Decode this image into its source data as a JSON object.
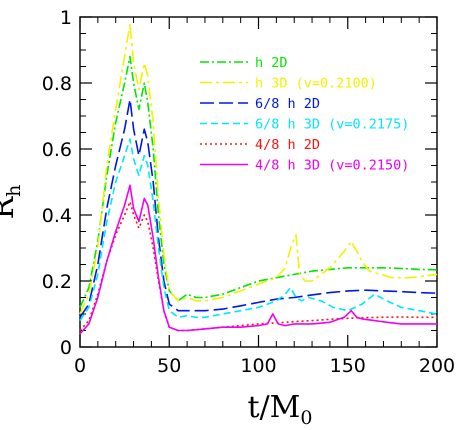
{
  "chart_data": {
    "type": "line",
    "title": "",
    "xlabel": {
      "main": "t/M",
      "sub": "0"
    },
    "ylabel": {
      "main": "R",
      "sub": "h"
    },
    "xlim": [
      0,
      200
    ],
    "ylim": [
      0,
      1
    ],
    "x_ticks": [
      0,
      50,
      100,
      150,
      200
    ],
    "x_tick_labels": [
      "0",
      "50",
      "100",
      "150",
      "200"
    ],
    "y_ticks": [
      0,
      0.2,
      0.4,
      0.6,
      0.8,
      1
    ],
    "y_tick_labels": [
      "0",
      "0.2",
      "0.4",
      "0.6",
      "0.8",
      "1"
    ],
    "grid": false,
    "legend_placement": "top-right",
    "series": [
      {
        "name": "h 2D",
        "color": "#00e600",
        "dash": "dashdot",
        "x": [
          0,
          5,
          10,
          15,
          20,
          25,
          28,
          30,
          33,
          36,
          38,
          41,
          44,
          47,
          50,
          55,
          60,
          65,
          70,
          80,
          90,
          100,
          110,
          120,
          130,
          140,
          150,
          160,
          170,
          180,
          190,
          200
        ],
        "y": [
          0.12,
          0.18,
          0.32,
          0.52,
          0.68,
          0.8,
          0.88,
          0.8,
          0.72,
          0.8,
          0.74,
          0.6,
          0.4,
          0.25,
          0.17,
          0.14,
          0.16,
          0.15,
          0.15,
          0.16,
          0.18,
          0.2,
          0.21,
          0.22,
          0.23,
          0.235,
          0.24,
          0.24,
          0.24,
          0.238,
          0.235,
          0.234
        ]
      },
      {
        "name": "h 3D (v=0.2100)",
        "color": "#f2f200",
        "dash": "longdashdot",
        "x": [
          0,
          5,
          10,
          15,
          20,
          25,
          28,
          30,
          33,
          36,
          38,
          41,
          44,
          47,
          50,
          55,
          60,
          65,
          70,
          80,
          90,
          100,
          110,
          115,
          118,
          121,
          123,
          126,
          130,
          140,
          148,
          152,
          155,
          158,
          162,
          168,
          175,
          185,
          200
        ],
        "y": [
          0.1,
          0.16,
          0.3,
          0.55,
          0.72,
          0.88,
          0.98,
          0.86,
          0.78,
          0.86,
          0.82,
          0.68,
          0.45,
          0.28,
          0.17,
          0.14,
          0.15,
          0.14,
          0.14,
          0.15,
          0.17,
          0.19,
          0.21,
          0.24,
          0.3,
          0.34,
          0.22,
          0.2,
          0.2,
          0.24,
          0.29,
          0.32,
          0.29,
          0.26,
          0.23,
          0.22,
          0.21,
          0.21,
          0.22
        ]
      },
      {
        "name": "6/8 h 2D",
        "color": "#0018e0",
        "dash": "longdash",
        "x": [
          0,
          5,
          10,
          15,
          20,
          25,
          28,
          30,
          33,
          36,
          38,
          41,
          44,
          47,
          50,
          55,
          60,
          65,
          70,
          80,
          90,
          100,
          110,
          120,
          130,
          140,
          150,
          160,
          170,
          180,
          190,
          200
        ],
        "y": [
          0.09,
          0.13,
          0.25,
          0.42,
          0.55,
          0.66,
          0.75,
          0.66,
          0.58,
          0.66,
          0.62,
          0.5,
          0.33,
          0.2,
          0.13,
          0.11,
          0.11,
          0.11,
          0.11,
          0.115,
          0.125,
          0.135,
          0.145,
          0.15,
          0.158,
          0.165,
          0.17,
          0.172,
          0.17,
          0.168,
          0.165,
          0.163
        ]
      },
      {
        "name": "6/8 h 3D (v=0.2175)",
        "color": "#00e6ff",
        "dash": "dash",
        "x": [
          0,
          5,
          10,
          15,
          20,
          25,
          28,
          30,
          33,
          36,
          38,
          41,
          44,
          47,
          50,
          55,
          60,
          65,
          70,
          80,
          90,
          100,
          110,
          115,
          118,
          121,
          124,
          128,
          135,
          142,
          150,
          158,
          165,
          172,
          180,
          190,
          200
        ],
        "y": [
          0.08,
          0.12,
          0.22,
          0.38,
          0.5,
          0.58,
          0.63,
          0.57,
          0.52,
          0.58,
          0.55,
          0.44,
          0.3,
          0.18,
          0.11,
          0.09,
          0.095,
          0.09,
          0.09,
          0.1,
          0.11,
          0.12,
          0.14,
          0.16,
          0.18,
          0.15,
          0.14,
          0.15,
          0.14,
          0.12,
          0.11,
          0.13,
          0.16,
          0.14,
          0.12,
          0.11,
          0.1
        ]
      },
      {
        "name": "4/8 h 2D",
        "color": "#ff1010",
        "dash": "dot",
        "x": [
          0,
          5,
          10,
          15,
          20,
          25,
          28,
          30,
          33,
          36,
          38,
          41,
          44,
          47,
          50,
          55,
          60,
          70,
          80,
          90,
          100,
          110,
          120,
          130,
          140,
          150,
          160,
          170,
          180,
          190,
          200
        ],
        "y": [
          0.05,
          0.08,
          0.16,
          0.26,
          0.34,
          0.4,
          0.44,
          0.4,
          0.36,
          0.4,
          0.38,
          0.3,
          0.2,
          0.11,
          0.06,
          0.05,
          0.05,
          0.055,
          0.06,
          0.065,
          0.07,
          0.073,
          0.077,
          0.08,
          0.084,
          0.087,
          0.089,
          0.09,
          0.091,
          0.09,
          0.09
        ]
      },
      {
        "name": "4/8 h 3D (v=0.2150)",
        "color": "#f200f2",
        "dash": "solid",
        "x": [
          0,
          5,
          10,
          15,
          20,
          25,
          28,
          30,
          33,
          36,
          38,
          41,
          44,
          47,
          50,
          55,
          60,
          70,
          80,
          90,
          100,
          105,
          108,
          111,
          115,
          120,
          130,
          140,
          148,
          152,
          155,
          158,
          165,
          172,
          180,
          190,
          200
        ],
        "y": [
          0.04,
          0.07,
          0.15,
          0.26,
          0.35,
          0.43,
          0.49,
          0.42,
          0.38,
          0.45,
          0.43,
          0.33,
          0.21,
          0.11,
          0.06,
          0.05,
          0.05,
          0.055,
          0.06,
          0.06,
          0.065,
          0.07,
          0.1,
          0.07,
          0.065,
          0.07,
          0.07,
          0.075,
          0.09,
          0.11,
          0.09,
          0.085,
          0.08,
          0.075,
          0.07,
          0.07,
          0.07
        ]
      }
    ]
  }
}
